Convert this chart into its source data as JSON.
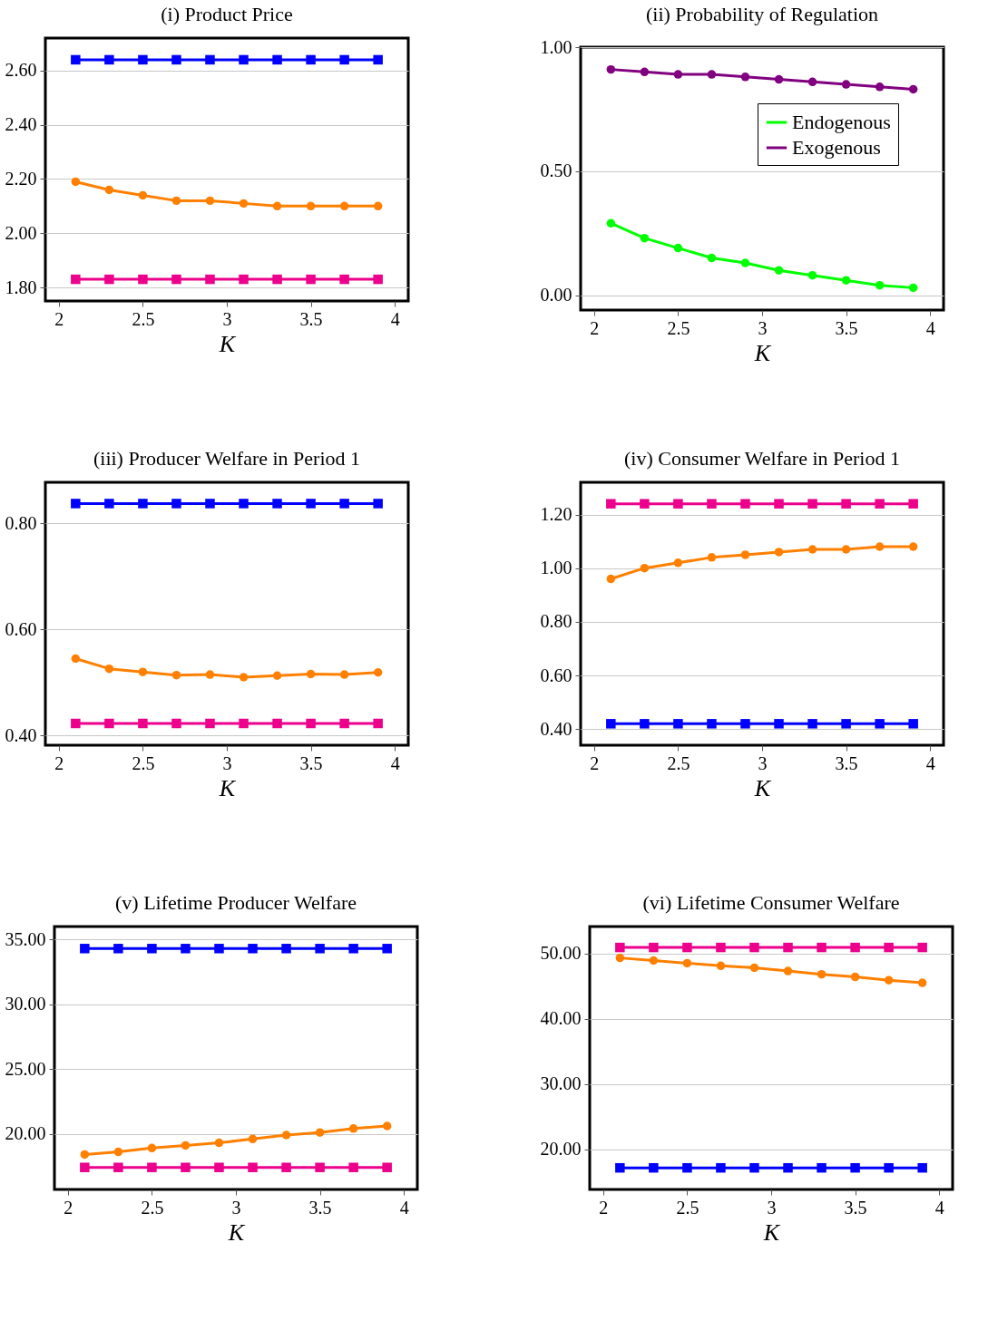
{
  "chart_data": [
    {
      "type": "line",
      "title": "(i) Product Price",
      "xlabel": "K",
      "x": [
        2.1,
        2.3,
        2.5,
        2.7,
        2.9,
        3.1,
        3.3,
        3.5,
        3.7,
        3.9
      ],
      "xlim": [
        1.92,
        4.08
      ],
      "xticks": [
        2,
        2.5,
        3,
        3.5,
        4
      ],
      "ylim": [
        1.75,
        2.72
      ],
      "yticks": [
        {
          "value": 1.8,
          "label": "1.80"
        },
        {
          "value": 2.0,
          "label": "2.00"
        },
        {
          "value": 2.2,
          "label": "2.20"
        },
        {
          "value": 2.4,
          "label": "2.40"
        },
        {
          "value": 2.6,
          "label": "2.60"
        }
      ],
      "grid": "y",
      "series": [
        {
          "color": "#0000ff",
          "marker": "square",
          "values": [
            2.64,
            2.64,
            2.64,
            2.64,
            2.64,
            2.64,
            2.64,
            2.64,
            2.64,
            2.64
          ]
        },
        {
          "color": "#ec008c",
          "marker": "square",
          "values": [
            1.83,
            1.83,
            1.83,
            1.83,
            1.83,
            1.83,
            1.83,
            1.83,
            1.83,
            1.83
          ]
        },
        {
          "color": "#ff8000",
          "marker": "circle",
          "values": [
            2.19,
            2.16,
            2.14,
            2.12,
            2.12,
            2.11,
            2.1,
            2.1,
            2.1,
            2.1
          ]
        }
      ]
    },
    {
      "type": "line",
      "title": "(ii) Probability of Regulation",
      "xlabel": "K",
      "x": [
        2.1,
        2.3,
        2.5,
        2.7,
        2.9,
        3.1,
        3.3,
        3.5,
        3.7,
        3.9
      ],
      "xlim": [
        1.92,
        4.08
      ],
      "xticks": [
        2,
        2.5,
        3,
        3.5,
        4
      ],
      "ylim": [
        -0.06,
        1.0
      ],
      "yticks": [
        {
          "value": 0,
          "label": "0.00"
        },
        {
          "value": 0.5,
          "label": "0.50"
        },
        {
          "value": 1.0,
          "label": "1.00"
        }
      ],
      "grid": "y",
      "legend": "top right",
      "series": [
        {
          "name": "Endogenous",
          "color": "#00ff00",
          "marker": "circle",
          "values": [
            0.29,
            0.23,
            0.19,
            0.15,
            0.13,
            0.1,
            0.08,
            0.06,
            0.04,
            0.03
          ]
        },
        {
          "name": "Exogenous",
          "color": "#800080",
          "marker": "circle",
          "values": [
            0.91,
            0.9,
            0.89,
            0.89,
            0.88,
            0.87,
            0.86,
            0.85,
            0.84,
            0.83
          ]
        }
      ]
    },
    {
      "type": "line",
      "title": "(iii) Producer Welfare in Period 1",
      "xlabel": "K",
      "x": [
        2.1,
        2.3,
        2.5,
        2.7,
        2.9,
        3.1,
        3.3,
        3.5,
        3.7,
        3.9
      ],
      "xlim": [
        1.92,
        4.08
      ],
      "xticks": [
        2,
        2.5,
        3,
        3.5,
        4
      ],
      "ylim": [
        0.382,
        0.877
      ],
      "yticks": [
        {
          "value": 0.4,
          "label": "0.40"
        },
        {
          "value": 0.6,
          "label": "0.60"
        },
        {
          "value": 0.8,
          "label": "0.80"
        }
      ],
      "grid": "y",
      "series": [
        {
          "color": "#0000ff",
          "marker": "square",
          "values": [
            0.837,
            0.837,
            0.837,
            0.837,
            0.837,
            0.837,
            0.837,
            0.837,
            0.837,
            0.837
          ]
        },
        {
          "color": "#ec008c",
          "marker": "square",
          "values": [
            0.423,
            0.423,
            0.423,
            0.423,
            0.423,
            0.423,
            0.423,
            0.423,
            0.423,
            0.423
          ]
        },
        {
          "color": "#ff8000",
          "marker": "circle",
          "values": [
            0.545,
            0.526,
            0.52,
            0.514,
            0.515,
            0.51,
            0.513,
            0.516,
            0.515,
            0.519
          ]
        }
      ]
    },
    {
      "type": "line",
      "title": "(iv) Consumer Welfare in Period 1",
      "xlabel": "K",
      "x": [
        2.1,
        2.3,
        2.5,
        2.7,
        2.9,
        3.1,
        3.3,
        3.5,
        3.7,
        3.9
      ],
      "xlim": [
        1.92,
        4.08
      ],
      "xticks": [
        2,
        2.5,
        3,
        3.5,
        4
      ],
      "ylim": [
        0.34,
        1.32
      ],
      "yticks": [
        {
          "value": 0.4,
          "label": "0.40"
        },
        {
          "value": 0.6,
          "label": "0.60"
        },
        {
          "value": 0.8,
          "label": "0.80"
        },
        {
          "value": 1.0,
          "label": "1.00"
        },
        {
          "value": 1.2,
          "label": "1.20"
        }
      ],
      "grid": "y",
      "series": [
        {
          "color": "#ec008c",
          "marker": "square",
          "values": [
            1.24,
            1.24,
            1.24,
            1.24,
            1.24,
            1.24,
            1.24,
            1.24,
            1.24,
            1.24
          ]
        },
        {
          "color": "#0000ff",
          "marker": "square",
          "values": [
            0.42,
            0.42,
            0.42,
            0.42,
            0.42,
            0.42,
            0.42,
            0.42,
            0.42,
            0.42
          ]
        },
        {
          "color": "#ff8000",
          "marker": "circle",
          "values": [
            0.96,
            1.0,
            1.02,
            1.04,
            1.05,
            1.06,
            1.07,
            1.07,
            1.08,
            1.08
          ]
        }
      ]
    },
    {
      "type": "line",
      "title": "(v) Lifetime Producer Welfare",
      "xlabel": "K",
      "x": [
        2.1,
        2.3,
        2.5,
        2.7,
        2.9,
        3.1,
        3.3,
        3.5,
        3.7,
        3.9
      ],
      "xlim": [
        1.92,
        4.08
      ],
      "xticks": [
        2,
        2.5,
        3,
        3.5,
        4
      ],
      "ylim": [
        15.7,
        36.0
      ],
      "yticks": [
        {
          "value": 20,
          "label": "20.00"
        },
        {
          "value": 25,
          "label": "25.00"
        },
        {
          "value": 30,
          "label": "30.00"
        },
        {
          "value": 35,
          "label": "35.00"
        }
      ],
      "grid": "y",
      "series": [
        {
          "color": "#0000ff",
          "marker": "square",
          "values": [
            34.3,
            34.3,
            34.3,
            34.3,
            34.3,
            34.3,
            34.3,
            34.3,
            34.3,
            34.3
          ]
        },
        {
          "color": "#ec008c",
          "marker": "square",
          "values": [
            17.4,
            17.4,
            17.4,
            17.4,
            17.4,
            17.4,
            17.4,
            17.4,
            17.4,
            17.4
          ]
        },
        {
          "color": "#ff8000",
          "marker": "circle",
          "values": [
            18.4,
            18.6,
            18.9,
            19.1,
            19.3,
            19.6,
            19.9,
            20.1,
            20.4,
            20.6
          ]
        }
      ]
    },
    {
      "type": "line",
      "title": "(vi) Lifetime Consumer Welfare",
      "xlabel": "K",
      "x": [
        2.1,
        2.3,
        2.5,
        2.7,
        2.9,
        3.1,
        3.3,
        3.5,
        3.7,
        3.9
      ],
      "xlim": [
        1.92,
        4.08
      ],
      "xticks": [
        2,
        2.5,
        3,
        3.5,
        4
      ],
      "ylim": [
        13.9,
        54.1
      ],
      "yticks": [
        {
          "value": 20,
          "label": "20.00"
        },
        {
          "value": 30,
          "label": "30.00"
        },
        {
          "value": 40,
          "label": "40.00"
        },
        {
          "value": 50,
          "label": "50.00"
        }
      ],
      "grid": "y",
      "series": [
        {
          "color": "#ec008c",
          "marker": "square",
          "values": [
            50.9,
            50.9,
            50.9,
            50.9,
            50.9,
            50.9,
            50.9,
            50.9,
            50.9,
            50.9
          ]
        },
        {
          "color": "#0000ff",
          "marker": "square",
          "values": [
            17.2,
            17.2,
            17.2,
            17.2,
            17.2,
            17.2,
            17.2,
            17.2,
            17.2,
            17.2
          ]
        },
        {
          "color": "#ff8000",
          "marker": "circle",
          "values": [
            49.3,
            48.9,
            48.5,
            48.1,
            47.8,
            47.3,
            46.8,
            46.4,
            45.9,
            45.5
          ]
        }
      ]
    }
  ]
}
